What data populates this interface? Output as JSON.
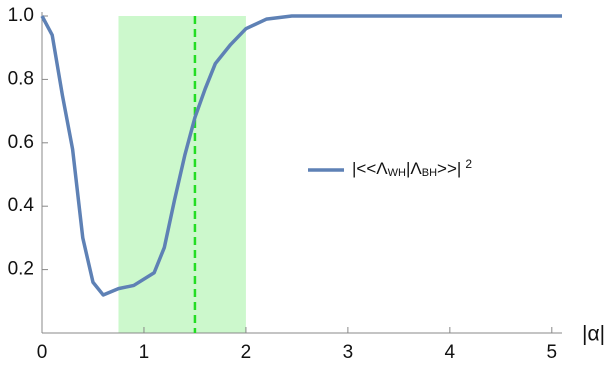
{
  "chart_data": {
    "type": "line",
    "x": [
      0,
      0.1,
      0.2,
      0.3,
      0.4,
      0.5,
      0.6,
      0.75,
      0.9,
      1.1,
      1.2,
      1.3,
      1.4,
      1.5,
      1.6,
      1.7,
      1.85,
      2.0,
      2.2,
      2.45,
      5.1
    ],
    "series": [
      {
        "name_parts": [
          {
            "text": "|<<Λ"
          },
          {
            "text": "WH",
            "sub": true
          },
          {
            "text": "|Λ"
          },
          {
            "text": "BH",
            "sub": true
          },
          {
            "text": ">>|"
          },
          {
            "text": "2",
            "sup": true
          }
        ],
        "color": "#5e81b5",
        "values": [
          1.0,
          0.94,
          0.75,
          0.58,
          0.3,
          0.16,
          0.12,
          0.14,
          0.15,
          0.19,
          0.27,
          0.42,
          0.56,
          0.68,
          0.77,
          0.85,
          0.91,
          0.96,
          0.99,
          1.0,
          1.0
        ]
      }
    ],
    "x_label": "|α|",
    "xlim": [
      0,
      5.1
    ],
    "ylim": [
      0,
      1.0
    ],
    "xticks": [
      0,
      1,
      2,
      3,
      4,
      5
    ],
    "yticks": [
      0.2,
      0.4,
      0.6,
      0.8,
      {
        "value": 1.0,
        "label": "1.0"
      }
    ],
    "shaded_region": [
      0.75,
      2.0
    ],
    "shade_color": "#ccf8cc",
    "vline": 1.5,
    "vline_color": "#22dd22",
    "legend": "right"
  }
}
